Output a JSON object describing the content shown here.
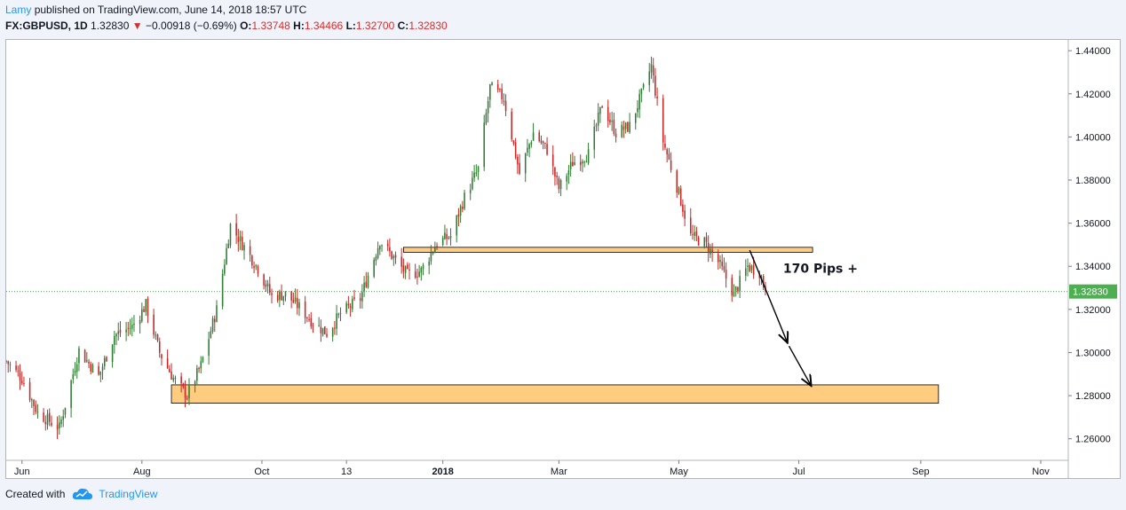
{
  "header": {
    "author": "Lamy",
    "published_text": "published on TradingView.com, June 14, 2018 18:57 UTC",
    "symbol": "FX:GBPUSD, 1D",
    "last": "1.32830",
    "change": "−0.00918 (−0.69%)",
    "o_label": "O:",
    "o": "1.33748",
    "h_label": "H:",
    "h": "1.34466",
    "l_label": "L:",
    "l": "1.32700",
    "c_label": "C:",
    "c": "1.32830"
  },
  "footer": {
    "created_with": "Created with",
    "brand": "TradingView"
  },
  "colors": {
    "up": "#2e7d32",
    "down": "#c62828",
    "zone_fill": "#ffcc80",
    "current_price_line": "#4caf50",
    "current_price_tag": "#4caf50"
  },
  "chart_data": {
    "type": "candlestick",
    "symbol": "GBPUSD",
    "interval": "1D",
    "y_axis": {
      "min": 1.25,
      "max": 1.445,
      "ticks": [
        "1.26000",
        "1.28000",
        "1.30000",
        "1.32000",
        "1.34000",
        "1.36000",
        "1.38000",
        "1.40000",
        "1.42000",
        "1.44000"
      ],
      "position": "right"
    },
    "x_axis": {
      "start": "2017-05-24",
      "end": "2018-11-15",
      "ticks": [
        {
          "date": "2017-06-01",
          "label": "Jun",
          "bold": false
        },
        {
          "date": "2017-08-01",
          "label": "Aug",
          "bold": false
        },
        {
          "date": "2017-10-01",
          "label": "Oct",
          "bold": false
        },
        {
          "date": "2017-11-13",
          "label": "13",
          "bold": false
        },
        {
          "date": "2018-01-01",
          "label": "2018",
          "bold": true
        },
        {
          "date": "2018-03-01",
          "label": "Mar",
          "bold": false
        },
        {
          "date": "2018-05-01",
          "label": "May",
          "bold": false
        },
        {
          "date": "2018-07-01",
          "label": "Jul",
          "bold": false
        },
        {
          "date": "2018-09-01",
          "label": "Sep",
          "bold": false
        },
        {
          "date": "2018-11-01",
          "label": "Nov",
          "bold": false
        }
      ]
    },
    "closes": [
      {
        "date": "2017-05-24",
        "close": 1.296
      },
      {
        "date": "2017-06-01",
        "close": 1.288
      },
      {
        "date": "2017-06-09",
        "close": 1.272
      },
      {
        "date": "2017-06-20",
        "close": 1.265
      },
      {
        "date": "2017-06-30",
        "close": 1.301
      },
      {
        "date": "2017-07-10",
        "close": 1.289
      },
      {
        "date": "2017-07-18",
        "close": 1.308
      },
      {
        "date": "2017-07-27",
        "close": 1.312
      },
      {
        "date": "2017-08-03",
        "close": 1.322
      },
      {
        "date": "2017-08-10",
        "close": 1.3
      },
      {
        "date": "2017-08-17",
        "close": 1.288
      },
      {
        "date": "2017-08-24",
        "close": 1.28
      },
      {
        "date": "2017-08-31",
        "close": 1.294
      },
      {
        "date": "2017-09-08",
        "close": 1.32
      },
      {
        "date": "2017-09-15",
        "close": 1.359
      },
      {
        "date": "2017-09-22",
        "close": 1.349
      },
      {
        "date": "2017-09-29",
        "close": 1.339
      },
      {
        "date": "2017-10-06",
        "close": 1.326
      },
      {
        "date": "2017-10-13",
        "close": 1.327
      },
      {
        "date": "2017-10-20",
        "close": 1.321
      },
      {
        "date": "2017-10-27",
        "close": 1.314
      },
      {
        "date": "2017-11-03",
        "close": 1.309
      },
      {
        "date": "2017-11-10",
        "close": 1.318
      },
      {
        "date": "2017-11-20",
        "close": 1.325
      },
      {
        "date": "2017-11-30",
        "close": 1.352
      },
      {
        "date": "2017-12-06",
        "close": 1.345
      },
      {
        "date": "2017-12-14",
        "close": 1.336
      },
      {
        "date": "2017-12-21",
        "close": 1.338
      },
      {
        "date": "2017-12-29",
        "close": 1.351
      },
      {
        "date": "2018-01-05",
        "close": 1.354
      },
      {
        "date": "2018-01-12",
        "close": 1.372
      },
      {
        "date": "2018-01-19",
        "close": 1.385
      },
      {
        "date": "2018-01-25",
        "close": 1.423
      },
      {
        "date": "2018-02-01",
        "close": 1.418
      },
      {
        "date": "2018-02-09",
        "close": 1.383
      },
      {
        "date": "2018-02-16",
        "close": 1.402
      },
      {
        "date": "2018-02-23",
        "close": 1.394
      },
      {
        "date": "2018-03-01",
        "close": 1.376
      },
      {
        "date": "2018-03-08",
        "close": 1.388
      },
      {
        "date": "2018-03-16",
        "close": 1.392
      },
      {
        "date": "2018-03-23",
        "close": 1.415
      },
      {
        "date": "2018-03-30",
        "close": 1.402
      },
      {
        "date": "2018-04-06",
        "close": 1.405
      },
      {
        "date": "2018-04-13",
        "close": 1.422
      },
      {
        "date": "2018-04-17",
        "close": 1.433
      },
      {
        "date": "2018-04-23",
        "close": 1.398
      },
      {
        "date": "2018-04-30",
        "close": 1.377
      },
      {
        "date": "2018-05-07",
        "close": 1.354
      },
      {
        "date": "2018-05-14",
        "close": 1.351
      },
      {
        "date": "2018-05-21",
        "close": 1.342
      },
      {
        "date": "2018-05-29",
        "close": 1.327
      },
      {
        "date": "2018-06-05",
        "close": 1.34
      },
      {
        "date": "2018-06-11",
        "close": 1.3374
      },
      {
        "date": "2018-06-14",
        "close": 1.3283
      }
    ],
    "current_price": "1.32830",
    "annotations": [
      {
        "type": "zone",
        "from": "2017-12-12",
        "to": "2018-07-08",
        "low": 1.3465,
        "high": 1.3488
      },
      {
        "type": "zone",
        "from": "2017-08-16",
        "to": "2018-09-10",
        "low": 1.2765,
        "high": 1.285
      },
      {
        "type": "arrow",
        "from_date": "2018-06-06",
        "from_price": 1.3475,
        "to_date": "2018-06-25",
        "to_price": 1.305
      },
      {
        "type": "arrow",
        "from_date": "2018-06-26",
        "from_price": 1.303,
        "to_date": "2018-07-07",
        "to_price": 1.285
      },
      {
        "type": "text",
        "date": "2018-06-23",
        "price": 1.337,
        "text": "170 Pips +"
      }
    ]
  }
}
